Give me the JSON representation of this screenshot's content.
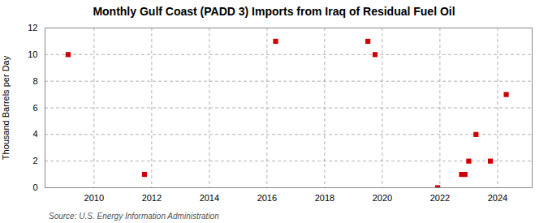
{
  "chart_data": {
    "type": "scatter",
    "title": "Monthly Gulf Coast (PADD 3) Imports from Iraq of Residual Fuel Oil",
    "ylabel": "Thousand Barrels per Day",
    "source": "Source: U.S. Energy Information Administration",
    "x": [
      2009.1,
      2011.75,
      2016.3,
      2019.5,
      2019.75,
      2021.92,
      2022.75,
      2022.87,
      2023.0,
      2023.25,
      2023.75,
      2024.3
    ],
    "values": [
      10,
      1,
      11,
      11,
      10,
      0,
      1,
      1,
      2,
      4,
      2,
      7
    ],
    "color": "#cc0000",
    "marker": "square",
    "xlim": [
      2008.3,
      2025.2
    ],
    "xticks": [
      2010,
      2012,
      2014,
      2016,
      2018,
      2020,
      2022,
      2024
    ],
    "ylim": [
      0,
      12
    ],
    "yticks": [
      0,
      2,
      4,
      6,
      8,
      10,
      12
    ],
    "grid": true
  }
}
